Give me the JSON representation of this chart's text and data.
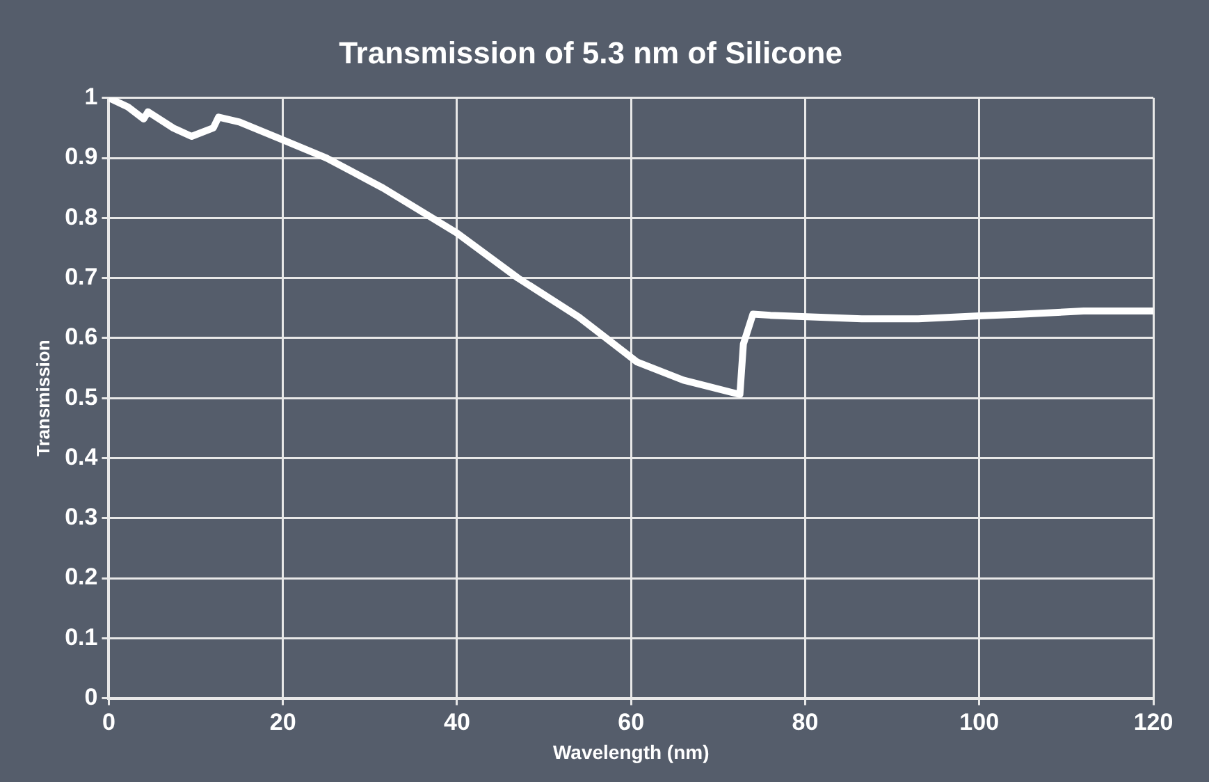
{
  "chart_data": {
    "type": "line",
    "title": "Transmission of 5.3 nm of Silicone",
    "xlabel": "Wavelength (nm)",
    "ylabel": "Transmission",
    "series": [
      {
        "color": "#ffffff",
        "x": [
          0,
          2.2,
          4,
          4.5,
          7.4,
          9.5,
          12,
          12.6,
          15,
          20,
          25,
          31.5,
          40,
          47,
          54,
          60.7,
          66,
          72.5,
          72.9,
          74,
          76,
          86.5,
          93,
          100,
          105,
          112,
          120
        ],
        "values": [
          1,
          0.985,
          0.965,
          0.977,
          0.95,
          0.936,
          0.95,
          0.968,
          0.96,
          0.93,
          0.9,
          0.85,
          0.775,
          0.7,
          0.635,
          0.56,
          0.53,
          0.506,
          0.59,
          0.64,
          0.638,
          0.632,
          0.632,
          0.637,
          0.64,
          0.645,
          0.645
        ]
      }
    ],
    "xlim": [
      0,
      120
    ],
    "xticks": [
      0,
      20,
      40,
      60,
      80,
      100,
      120
    ],
    "ylim": [
      0,
      1
    ],
    "yticks": [
      0,
      0.1,
      0.2,
      0.3,
      0.4,
      0.5,
      0.6,
      0.7,
      0.8,
      0.9,
      1
    ],
    "grid": true,
    "legend": false,
    "marker": "none",
    "line_style": "solid"
  }
}
